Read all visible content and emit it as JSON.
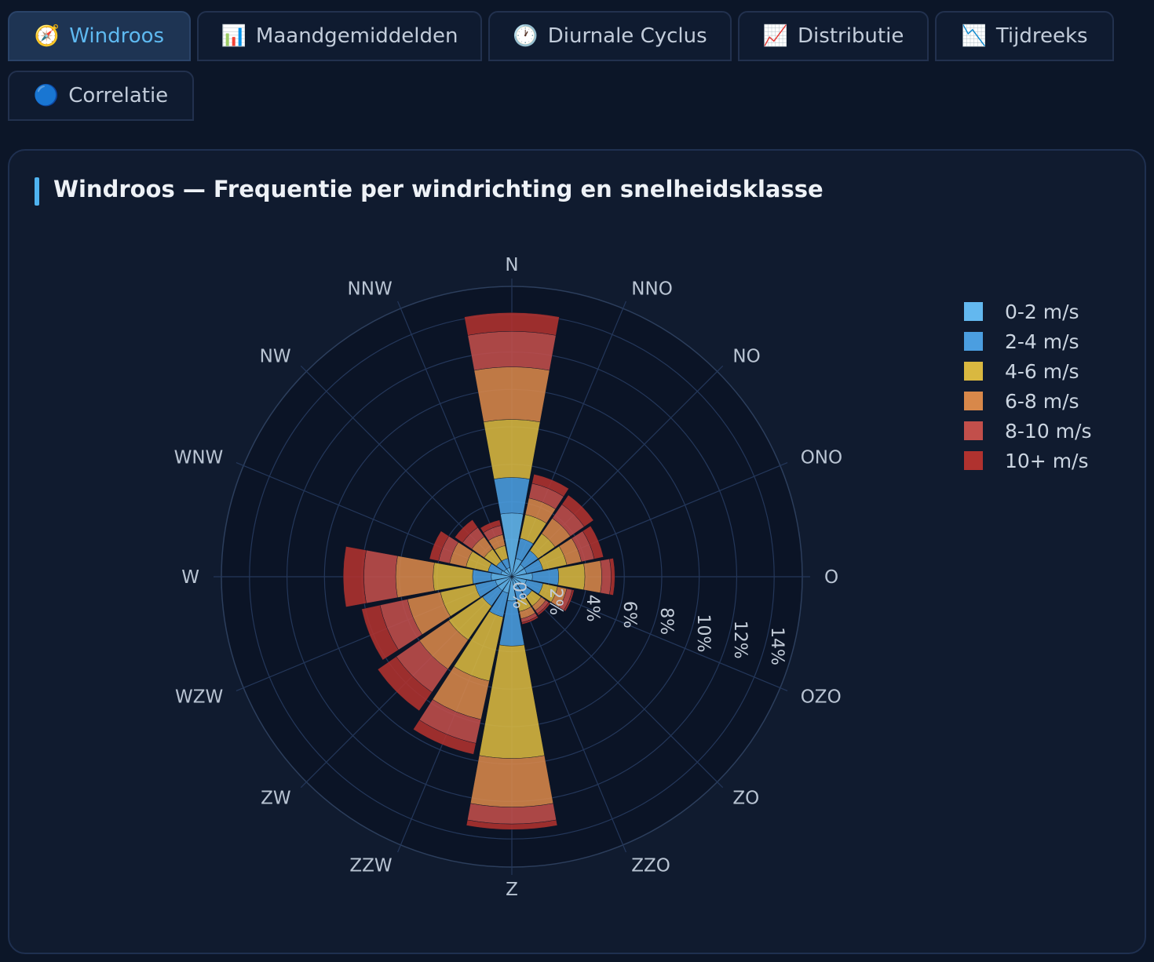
{
  "tabs": [
    {
      "icon": "🧭",
      "label": "Windroos",
      "active": true
    },
    {
      "icon": "📊",
      "label": "Maandgemiddelden",
      "active": false
    },
    {
      "icon": "🕐",
      "label": "Diurnale Cyclus",
      "active": false
    },
    {
      "icon": "📈",
      "label": "Distributie",
      "active": false
    },
    {
      "icon": "📉",
      "label": "Tijdreeks",
      "active": false
    },
    {
      "icon": "🔵",
      "label": "Correlatie",
      "active": false
    }
  ],
  "panel": {
    "title": "Windroos — Frequentie per windrichting en snelheidsklasse"
  },
  "chart_data": {
    "type": "barpolar",
    "stacked": true,
    "directions": [
      "N",
      "NNO",
      "NO",
      "ONO",
      "O",
      "OZO",
      "ZO",
      "ZZO",
      "Z",
      "ZZW",
      "ZW",
      "WZW",
      "W",
      "WNW",
      "NW",
      "NNW"
    ],
    "radial_ticks": [
      "0%",
      "2%",
      "4%",
      "6%",
      "8%",
      "10%",
      "12%",
      "14%"
    ],
    "radial_range": [
      0,
      15.5
    ],
    "series": [
      {
        "name": "0-2 m/s",
        "color": "#63b8ef",
        "values": [
          3.4,
          1.0,
          0.8,
          0.8,
          1.1,
          0.8,
          0.6,
          0.6,
          1.3,
          0.9,
          0.9,
          0.9,
          1.1,
          0.6,
          0.5,
          0.5
        ]
      },
      {
        "name": "2-4 m/s",
        "color": "#4b9ee0",
        "values": [
          1.9,
          1.1,
          0.9,
          0.9,
          1.4,
          0.9,
          0.7,
          0.7,
          2.4,
          1.3,
          1.0,
          1.1,
          1.0,
          0.7,
          0.5,
          0.5
        ]
      },
      {
        "name": "4-6 m/s",
        "color": "#d9b840",
        "values": [
          3.1,
          1.3,
          1.1,
          1.3,
          1.4,
          0.8,
          0.6,
          0.6,
          6.0,
          3.5,
          2.2,
          1.9,
          2.1,
          1.2,
          0.8,
          0.7
        ]
      },
      {
        "name": "6-8 m/s",
        "color": "#d8884a",
        "values": [
          2.8,
          0.9,
          1.0,
          0.8,
          0.9,
          0.5,
          0.3,
          0.4,
          2.6,
          2.1,
          1.9,
          1.8,
          2.0,
          0.9,
          0.8,
          0.6
        ]
      },
      {
        "name": "8-10 m/s",
        "color": "#c24f4b",
        "values": [
          1.9,
          0.8,
          0.9,
          0.7,
          0.5,
          0.3,
          0.2,
          0.2,
          0.9,
          1.3,
          1.5,
          1.5,
          1.7,
          0.6,
          0.6,
          0.5
        ]
      },
      {
        "name": "10+ m/s",
        "color": "#b0322f",
        "values": [
          1.0,
          0.5,
          0.6,
          0.5,
          0.2,
          0.1,
          0.1,
          0.1,
          0.3,
          0.6,
          1.2,
          1.0,
          1.1,
          0.5,
          0.5,
          0.3
        ]
      }
    ]
  }
}
